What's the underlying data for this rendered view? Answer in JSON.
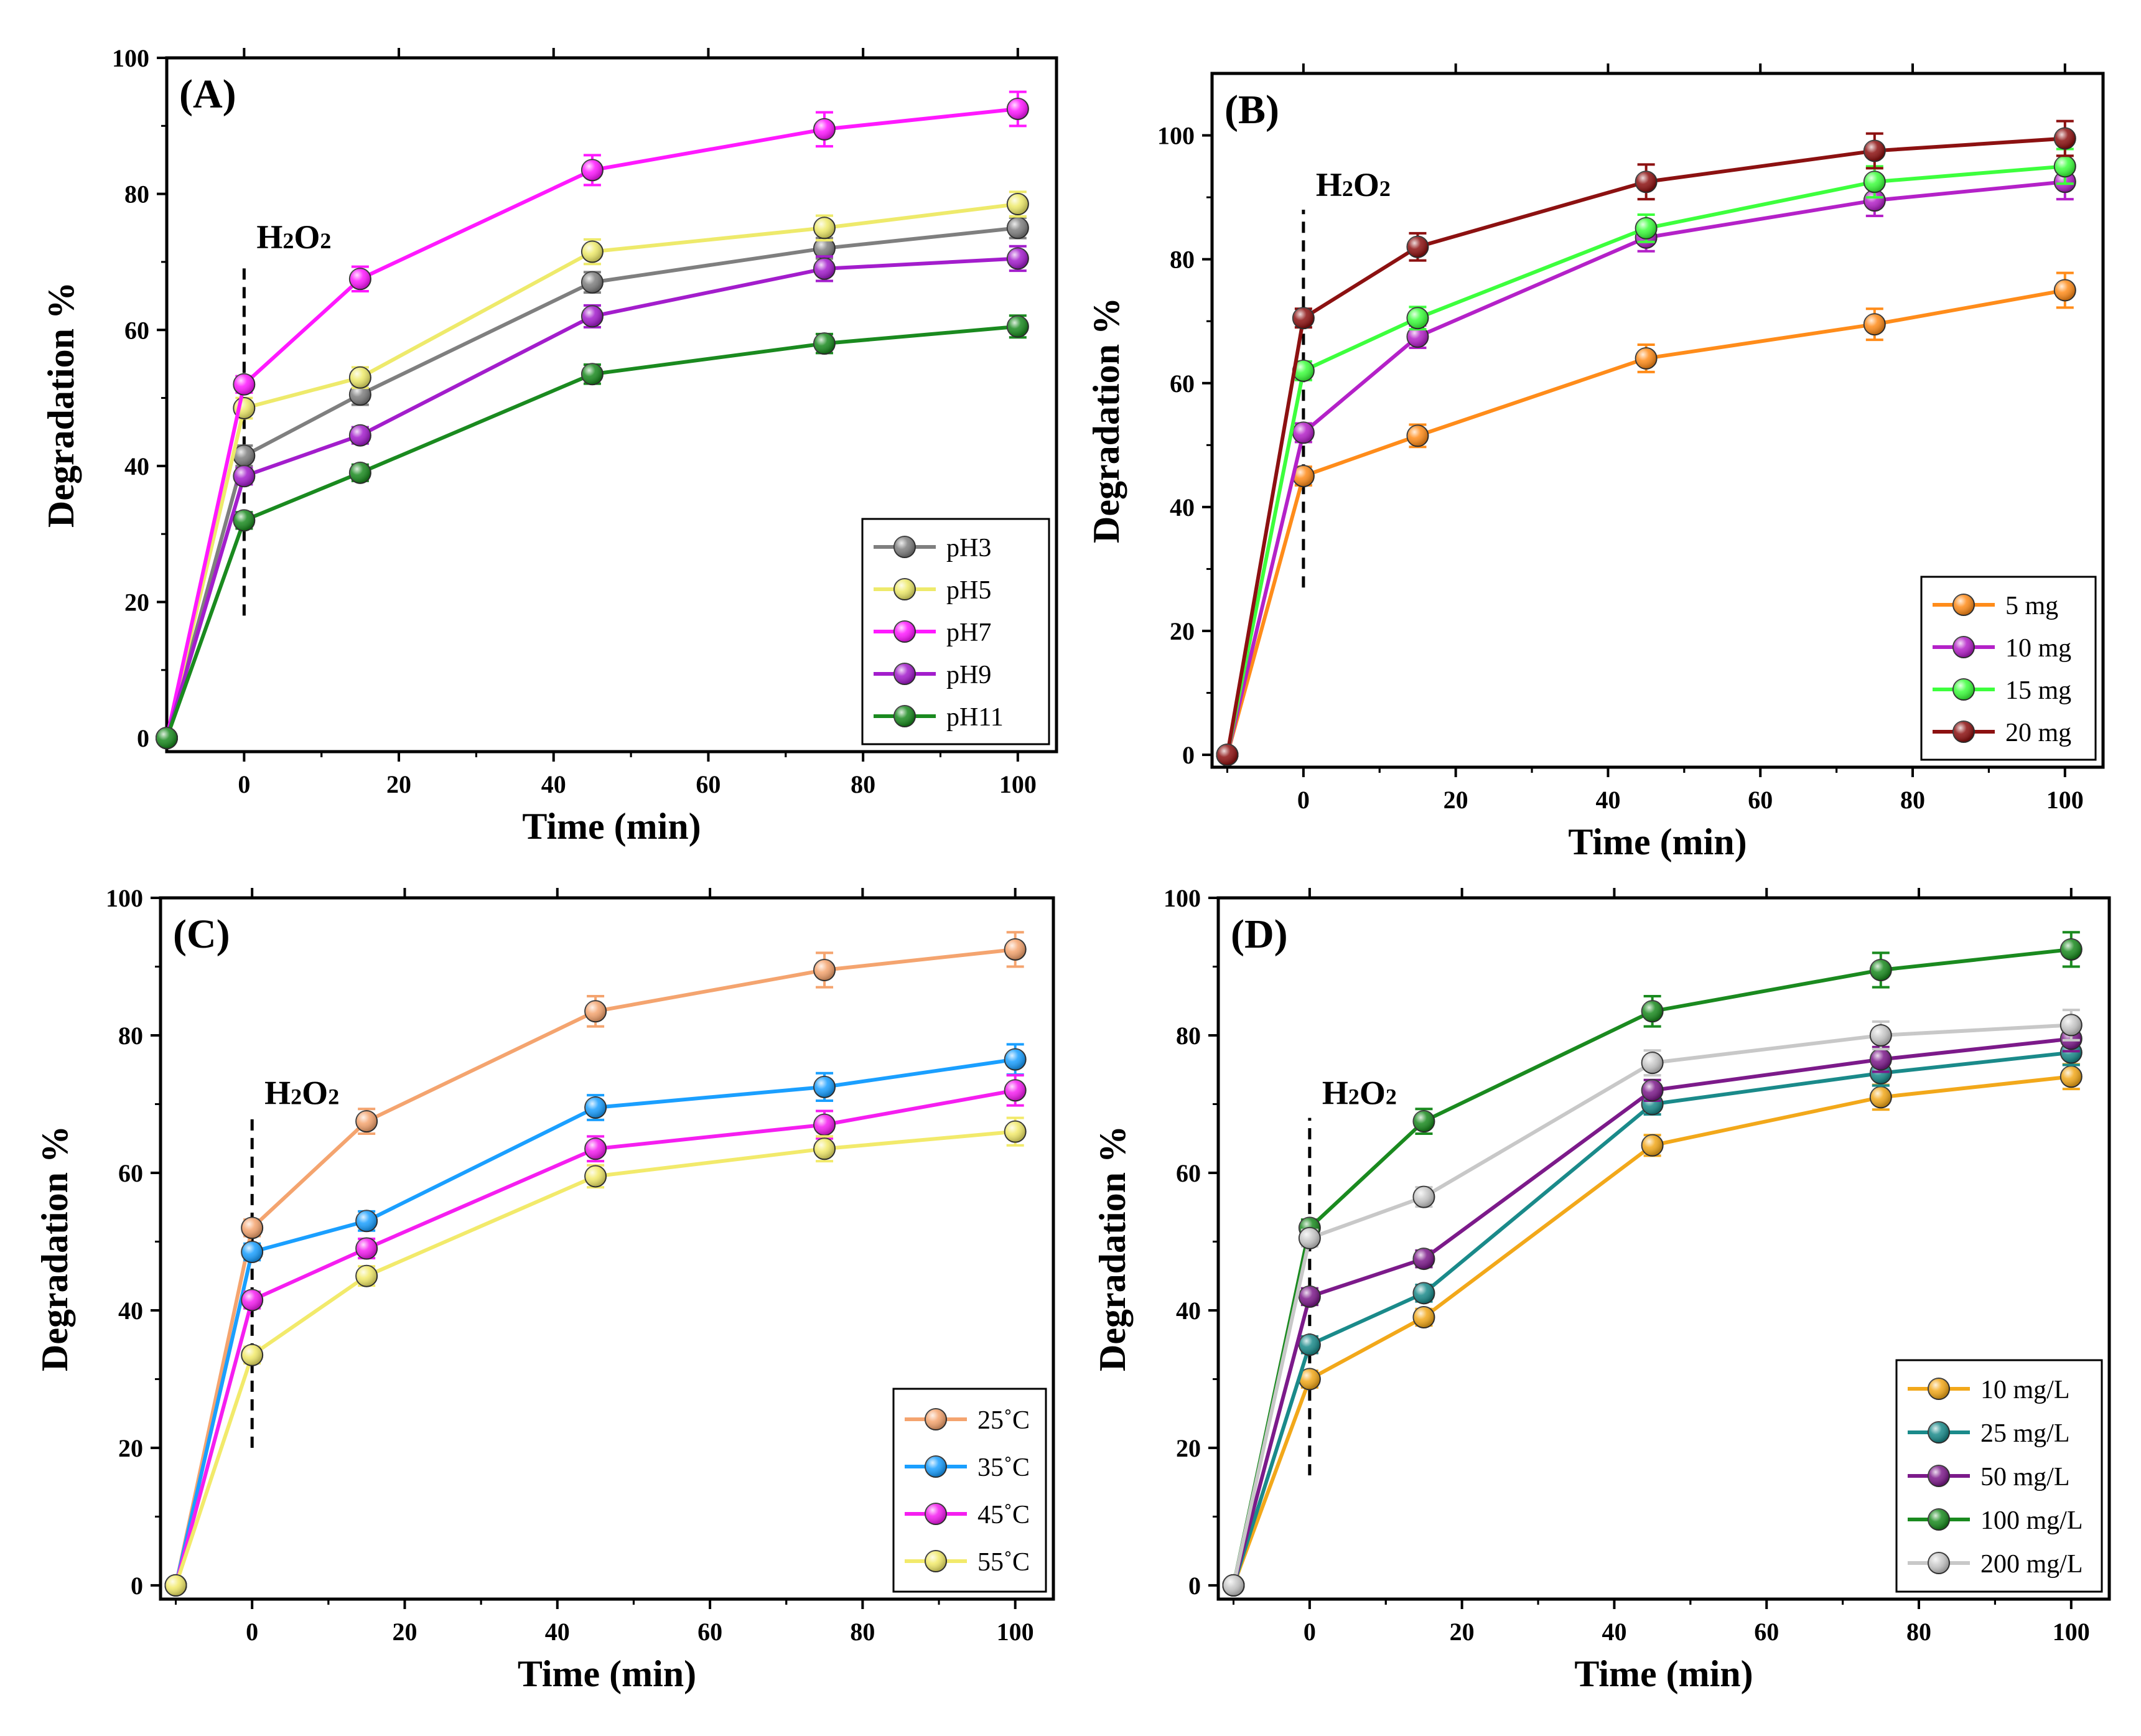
{
  "chart_data": [
    {
      "panel_label": "(A)",
      "type": "line",
      "xlabel": "Time (min)",
      "ylabel": "Degradation %",
      "xlim": [
        -10,
        105
      ],
      "ylim": [
        -2,
        100
      ],
      "x_ticks": [
        0,
        20,
        40,
        60,
        80,
        100
      ],
      "y_ticks": [
        0,
        20,
        40,
        60,
        80,
        100
      ],
      "annotation": {
        "text": "H2O2",
        "x": 0,
        "y_from": 18,
        "y_to": 70
      },
      "legend": "bottom-right",
      "x": [
        -10,
        0,
        15,
        45,
        75,
        100
      ],
      "series": [
        {
          "name": "pH3",
          "color": "#7f7f7f",
          "values": [
            0,
            41.5,
            50.5,
            67,
            72,
            75
          ],
          "errors": [
            0,
            1.5,
            1.5,
            1.5,
            1.5,
            1.5
          ]
        },
        {
          "name": "pH5",
          "color": "#eeea6b",
          "values": [
            0,
            48.5,
            53,
            71.5,
            75,
            78.5
          ],
          "errors": [
            0,
            1.5,
            1.5,
            1.8,
            1.8,
            1.8
          ]
        },
        {
          "name": "pH7",
          "color": "#ff19ff",
          "values": [
            0,
            52,
            67.5,
            83.5,
            89.5,
            92.5
          ],
          "errors": [
            0,
            1.2,
            1.8,
            2.2,
            2.5,
            2.5
          ]
        },
        {
          "name": "pH9",
          "color": "#a31dcc",
          "values": [
            0,
            38.5,
            44.5,
            62,
            69,
            70.5
          ],
          "errors": [
            0,
            1.2,
            1.2,
            1.6,
            1.8,
            1.8
          ]
        },
        {
          "name": "pH11",
          "color": "#1a8a1f",
          "values": [
            0,
            32,
            39,
            53.5,
            58,
            60.5
          ],
          "errors": [
            0,
            1.2,
            1.2,
            1.4,
            1.4,
            1.6
          ]
        }
      ]
    },
    {
      "panel_label": "(B)",
      "type": "line",
      "xlabel": "Time (min)",
      "ylabel": "Degradation %",
      "xlim": [
        -12,
        105
      ],
      "ylim": [
        -2,
        110
      ],
      "x_ticks": [
        0,
        20,
        40,
        60,
        80,
        100
      ],
      "y_ticks": [
        0,
        20,
        40,
        60,
        80,
        100
      ],
      "annotation": {
        "text": "H2O2",
        "x": 0,
        "y_from": 27,
        "y_to": 88
      },
      "legend": "bottom-right",
      "x": [
        -10,
        0,
        15,
        45,
        75,
        100
      ],
      "series": [
        {
          "name": "5 mg",
          "color": "#ff8c1a",
          "values": [
            0,
            45,
            51.5,
            64,
            69.5,
            75
          ],
          "errors": [
            0,
            1.5,
            1.8,
            2.2,
            2.5,
            2.8
          ]
        },
        {
          "name": "10 mg",
          "color": "#b421c8",
          "values": [
            0,
            52,
            67.5,
            83.5,
            89.5,
            92.5
          ],
          "errors": [
            0,
            1.5,
            1.8,
            2.2,
            2.5,
            2.8
          ]
        },
        {
          "name": "15 mg",
          "color": "#3dff3d",
          "values": [
            0,
            62,
            70.5,
            85,
            92.5,
            95
          ],
          "errors": [
            0,
            1.5,
            1.8,
            2.2,
            2.5,
            2.8
          ]
        },
        {
          "name": "20 mg",
          "color": "#8c1111",
          "values": [
            0,
            70.5,
            82,
            92.5,
            97.5,
            99.5
          ],
          "errors": [
            0,
            1.5,
            2.2,
            2.8,
            2.8,
            2.8
          ]
        }
      ]
    },
    {
      "panel_label": "(C)",
      "type": "line",
      "xlabel": "Time (min)",
      "ylabel": "Degradation %",
      "xlim": [
        -12,
        105
      ],
      "ylim": [
        -2,
        100
      ],
      "x_ticks": [
        0,
        20,
        40,
        60,
        80,
        100
      ],
      "y_ticks": [
        0,
        20,
        40,
        60,
        80,
        100
      ],
      "annotation": {
        "text": "H2O2",
        "x": 0,
        "y_from": 20,
        "y_to": 68
      },
      "legend": "bottom-right",
      "x": [
        -10,
        0,
        15,
        45,
        75,
        100
      ],
      "series": [
        {
          "name": "25˚C",
          "color": "#f4a46f",
          "values": [
            0,
            52,
            67.5,
            83.5,
            89.5,
            92.5
          ],
          "errors": [
            0,
            1.2,
            1.8,
            2.2,
            2.5,
            2.5
          ]
        },
        {
          "name": "35˚C",
          "color": "#1a9fff",
          "values": [
            0,
            48.5,
            53,
            69.5,
            72.5,
            76.5
          ],
          "errors": [
            0,
            1.2,
            1.4,
            1.8,
            2,
            2.2
          ]
        },
        {
          "name": "45˚C",
          "color": "#f51ef0",
          "values": [
            0,
            41.5,
            49,
            63.5,
            67,
            72
          ],
          "errors": [
            0,
            1.2,
            1.4,
            1.8,
            2,
            2.2
          ]
        },
        {
          "name": "55˚C",
          "color": "#f2ea6b",
          "values": [
            0,
            33.5,
            45,
            59.5,
            63.5,
            66
          ],
          "errors": [
            0,
            1.2,
            1.4,
            1.6,
            1.8,
            2
          ]
        }
      ]
    },
    {
      "panel_label": "(D)",
      "type": "line",
      "xlabel": "Time (min)",
      "ylabel": "Degradation %",
      "xlim": [
        -12,
        105
      ],
      "ylim": [
        -2,
        100
      ],
      "x_ticks": [
        0,
        20,
        40,
        60,
        80,
        100
      ],
      "y_ticks": [
        0,
        20,
        40,
        60,
        80,
        100
      ],
      "annotation": {
        "text": "H2O2",
        "x": 0,
        "y_from": 16,
        "y_to": 68
      },
      "legend": "bottom-right",
      "x": [
        -10,
        0,
        15,
        45,
        75,
        100
      ],
      "series": [
        {
          "name": "10 mg/L",
          "color": "#f2a81a",
          "values": [
            0,
            30,
            39,
            64,
            71,
            74
          ],
          "errors": [
            0,
            1.2,
            1.2,
            1.5,
            1.8,
            1.8
          ]
        },
        {
          "name": "25 mg/L",
          "color": "#1a8a8a",
          "values": [
            0,
            35,
            42.5,
            70,
            74.5,
            77.5
          ],
          "errors": [
            0,
            1.2,
            1.2,
            1.5,
            1.8,
            1.8
          ]
        },
        {
          "name": "50 mg/L",
          "color": "#7c1a8a",
          "values": [
            0,
            42,
            47.5,
            72,
            76.5,
            79.5
          ],
          "errors": [
            0,
            1.2,
            1.2,
            1.5,
            1.8,
            1.8
          ]
        },
        {
          "name": "100 mg/L",
          "color": "#1a8a1f",
          "values": [
            0,
            52,
            67.5,
            83.5,
            89.5,
            92.5
          ],
          "errors": [
            0,
            1.2,
            1.8,
            2.2,
            2.5,
            2.5
          ]
        },
        {
          "name": "200 mg/L",
          "color": "#c8c8c8",
          "values": [
            0,
            50.5,
            56.5,
            76,
            80,
            81.5
          ],
          "errors": [
            0,
            1.2,
            1.4,
            1.8,
            2,
            2.2
          ]
        }
      ]
    }
  ]
}
